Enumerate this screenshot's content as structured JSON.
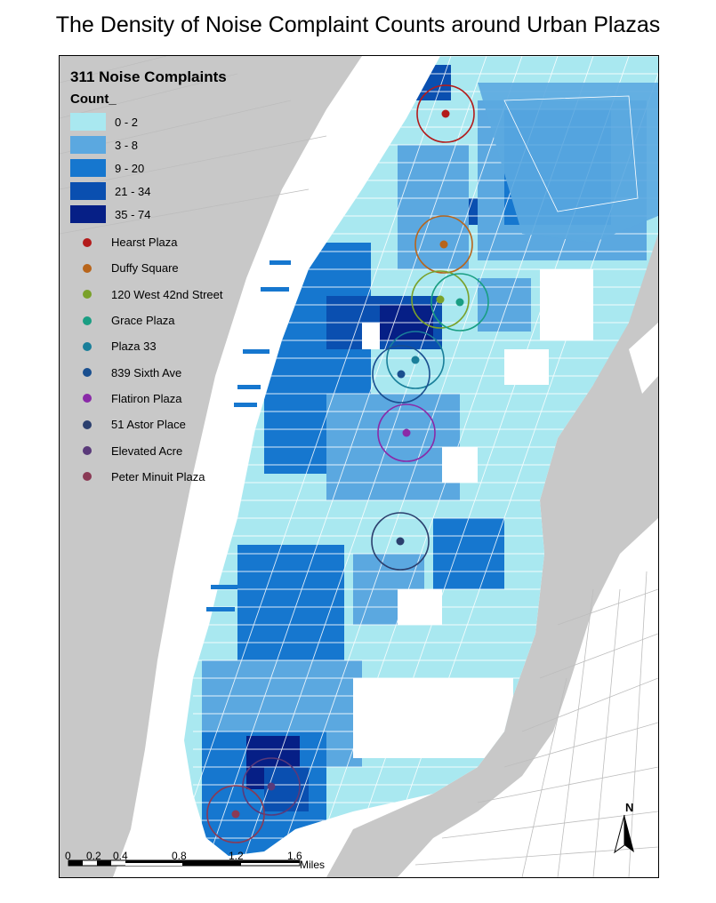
{
  "title": "The Density of Noise Complaint Counts around Urban Plazas",
  "legend": {
    "title": "311 Noise Complaints",
    "field": "Count_",
    "classes": [
      {
        "label": "0 - 2",
        "color": "#a9e8f0"
      },
      {
        "label": "3 - 8",
        "color": "#5ba8e0"
      },
      {
        "label": "9 - 20",
        "color": "#1677cf"
      },
      {
        "label": "21 - 34",
        "color": "#0a4fb0"
      },
      {
        "label": "35 - 74",
        "color": "#061f86"
      }
    ]
  },
  "plazas": [
    {
      "name": "Hearst Plaza",
      "color": "#b31b1b"
    },
    {
      "name": "Duffy Square",
      "color": "#b8651b"
    },
    {
      "name": "120 West 42nd Street",
      "color": "#7aa12a"
    },
    {
      "name": "Grace Plaza",
      "color": "#1a9e83"
    },
    {
      "name": "Plaza 33",
      "color": "#1a7f9a"
    },
    {
      "name": "839 Sixth Ave",
      "color": "#1a4f8f"
    },
    {
      "name": "Flatiron Plaza",
      "color": "#8a2aa8"
    },
    {
      "name": "51 Astor Place",
      "color": "#2b3f6e"
    },
    {
      "name": "Elevated Acre",
      "color": "#5a3a7a"
    },
    {
      "name": "Peter Minuit Plaza",
      "color": "#8a3a55"
    }
  ],
  "scale_bar": {
    "labels": [
      "0",
      "0.2",
      "0.4",
      "0.8",
      "1.2",
      "1.6"
    ],
    "unit": "Miles"
  },
  "north_arrow": {
    "label": "N"
  }
}
